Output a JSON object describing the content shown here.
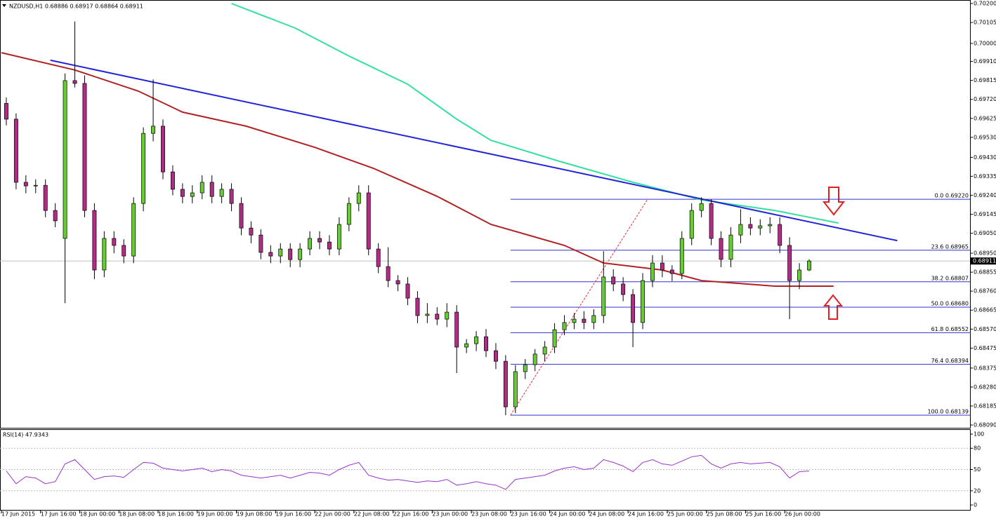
{
  "chart_data": {
    "type": "candlestick",
    "title": "NZDUSD,H1 0.68886 0.68917 0.68864 0.68911",
    "xlim": [
      0,
      198
    ],
    "ylim": [
      0.6809,
      0.702
    ],
    "xticks": [
      {
        "value": 0,
        "label": "17 Jun 2015"
      },
      {
        "value": 8,
        "label": "17 Jun 16:00"
      },
      {
        "value": 16,
        "label": "18 Jun 00:00"
      },
      {
        "value": 24,
        "label": "18 Jun 08:00"
      },
      {
        "value": 32,
        "label": "18 Jun 16:00"
      },
      {
        "value": 40,
        "label": "19 Jun 00:00"
      },
      {
        "value": 48,
        "label": "19 Jun 08:00"
      },
      {
        "value": 56,
        "label": "19 Jun 16:00"
      },
      {
        "value": 64,
        "label": "22 Jun 00:00"
      },
      {
        "value": 72,
        "label": "22 Jun 08:00"
      },
      {
        "value": 80,
        "label": "22 Jun 16:00"
      },
      {
        "value": 88,
        "label": "23 Jun 00:00"
      },
      {
        "value": 96,
        "label": "23 Jun 08:00"
      },
      {
        "value": 104,
        "label": "23 Jun 16:00"
      },
      {
        "value": 112,
        "label": "24 Jun 00:00"
      },
      {
        "value": 120,
        "label": "24 Jun 08:00"
      },
      {
        "value": 128,
        "label": "24 Jun 16:00"
      },
      {
        "value": 136,
        "label": "25 Jun 00:00"
      },
      {
        "value": 144,
        "label": "25 Jun 08:00"
      },
      {
        "value": 152,
        "label": "25 Jun 16:00"
      },
      {
        "value": 160,
        "label": "26 Jun 00:00"
      }
    ],
    "yticks": [
      {
        "value": 0.702,
        "label": "0.70200"
      },
      {
        "value": 0.70105,
        "label": "0.70105"
      },
      {
        "value": 0.7,
        "label": "0.70000"
      },
      {
        "value": 0.6991,
        "label": "0.69910"
      },
      {
        "value": 0.69815,
        "label": "0.69815"
      },
      {
        "value": 0.6972,
        "label": "0.69720"
      },
      {
        "value": 0.69625,
        "label": "0.69625"
      },
      {
        "value": 0.6953,
        "label": "0.69530"
      },
      {
        "value": 0.6943,
        "label": "0.69430"
      },
      {
        "value": 0.69335,
        "label": "0.69335"
      },
      {
        "value": 0.6924,
        "label": "0.69240"
      },
      {
        "value": 0.69145,
        "label": "0.69145"
      },
      {
        "value": 0.6905,
        "label": "0.69050"
      },
      {
        "value": 0.6895,
        "label": "0.68950"
      },
      {
        "value": 0.68855,
        "label": "0.68855"
      },
      {
        "value": 0.6876,
        "label": "0.68760"
      },
      {
        "value": 0.68665,
        "label": "0.68665"
      },
      {
        "value": 0.6857,
        "label": "0.68570"
      },
      {
        "value": 0.68475,
        "label": "0.68475"
      },
      {
        "value": 0.68375,
        "label": "0.68375"
      },
      {
        "value": 0.6828,
        "label": "0.68280"
      },
      {
        "value": 0.68185,
        "label": "0.68185"
      },
      {
        "value": 0.6809,
        "label": "0.68090"
      }
    ],
    "up_color": "#66cc33",
    "down_color": "#b02d86",
    "open": [
      0.697,
      0.69621,
      0.69305,
      0.69287,
      0.6929,
      0.69164,
      0.69024,
      0.69814,
      0.698,
      0.69164,
      0.68866,
      0.69024,
      0.68989,
      0.68936,
      0.69199,
      0.6955,
      0.69586,
      0.69357,
      0.6927,
      0.69234,
      0.69252,
      0.69305,
      0.69234,
      0.6927,
      0.69199,
      0.69076,
      0.69041,
      0.68954,
      0.68936,
      0.68971,
      0.68918,
      0.68971,
      0.69024,
      0.69006,
      0.68971,
      0.69094,
      0.69199,
      0.69252,
      0.68971,
      0.68883,
      0.68813,
      0.68796,
      0.68725,
      0.68638,
      0.68645,
      0.6862,
      0.68655,
      0.6848,
      0.68497,
      0.68532,
      0.68462,
      0.68409,
      0.68181,
      0.68357,
      0.68392,
      0.68445,
      0.6848,
      0.68567,
      0.68603,
      0.6862,
      0.68603,
      0.68638,
      0.68831,
      0.68796,
      0.68743,
      0.68603,
      0.68813,
      0.68901,
      0.68866,
      0.68848,
      0.69024,
      0.69164,
      0.69199,
      0.69024,
      0.68919,
      0.69041,
      0.69094,
      0.69076,
      0.69087,
      0.69094,
      0.68989,
      0.68813,
      0.68866
    ],
    "high": [
      0.6973,
      0.6965,
      0.6934,
      0.6932,
      0.6932,
      0.692,
      0.6985,
      0.7011,
      0.6984,
      0.692,
      0.6906,
      0.6906,
      0.6902,
      0.6923,
      0.6958,
      0.6982,
      0.6962,
      0.6939,
      0.693,
      0.6929,
      0.6934,
      0.6934,
      0.693,
      0.693,
      0.6923,
      0.6911,
      0.6907,
      0.6899,
      0.69,
      0.69,
      0.69,
      0.6906,
      0.6906,
      0.6904,
      0.6913,
      0.6923,
      0.6929,
      0.6929,
      0.69,
      0.6898,
      0.6884,
      0.6883,
      0.6876,
      0.687,
      0.6868,
      0.687,
      0.6869,
      0.6852,
      0.6856,
      0.6857,
      0.685,
      0.6844,
      0.6839,
      0.6842,
      0.6847,
      0.6851,
      0.686,
      0.6864,
      0.6865,
      0.6866,
      0.6867,
      0.6896,
      0.6887,
      0.6883,
      0.6877,
      0.6885,
      0.6894,
      0.6894,
      0.6889,
      0.6906,
      0.692,
      0.6923,
      0.6922,
      0.6906,
      0.6908,
      0.6917,
      0.6913,
      0.6912,
      0.6913,
      0.6913,
      0.6903,
      0.689,
      0.6892
    ],
    "low": [
      0.6959,
      0.6927,
      0.6925,
      0.6925,
      0.6913,
      0.6908,
      0.687,
      0.6978,
      0.6913,
      0.6882,
      0.6883,
      0.6895,
      0.689,
      0.689,
      0.6916,
      0.6951,
      0.6932,
      0.6924,
      0.692,
      0.692,
      0.6922,
      0.692,
      0.692,
      0.6916,
      0.6904,
      0.69,
      0.6892,
      0.689,
      0.689,
      0.6888,
      0.6888,
      0.6894,
      0.6897,
      0.6894,
      0.6894,
      0.6906,
      0.6916,
      0.6894,
      0.6885,
      0.6878,
      0.6876,
      0.6869,
      0.686,
      0.686,
      0.6859,
      0.6858,
      0.6835,
      0.6845,
      0.6846,
      0.6843,
      0.6837,
      0.68139,
      0.6815,
      0.6832,
      0.6836,
      0.6841,
      0.6845,
      0.6854,
      0.6857,
      0.6857,
      0.6857,
      0.686,
      0.6876,
      0.6871,
      0.6848,
      0.6857,
      0.6878,
      0.6883,
      0.6881,
      0.6882,
      0.6899,
      0.6913,
      0.6899,
      0.6888,
      0.6888,
      0.69,
      0.6904,
      0.6904,
      0.6905,
      0.6895,
      0.6862,
      0.6877,
      0.6886
    ],
    "close": [
      0.69621,
      0.69305,
      0.69287,
      0.6929,
      0.69164,
      0.69112,
      0.69814,
      0.698,
      0.69164,
      0.68866,
      0.69024,
      0.68989,
      0.68936,
      0.69199,
      0.6955,
      0.69586,
      0.69357,
      0.6927,
      0.69234,
      0.69252,
      0.69305,
      0.69234,
      0.6927,
      0.69199,
      0.69076,
      0.69041,
      0.68954,
      0.68936,
      0.68971,
      0.68918,
      0.68971,
      0.69024,
      0.69006,
      0.68971,
      0.69094,
      0.69199,
      0.69252,
      0.68971,
      0.68883,
      0.68813,
      0.68796,
      0.68725,
      0.68638,
      0.68645,
      0.6862,
      0.68655,
      0.6848,
      0.68497,
      0.68532,
      0.68462,
      0.68409,
      0.68181,
      0.68357,
      0.68392,
      0.68445,
      0.6848,
      0.68567,
      0.68603,
      0.6862,
      0.68603,
      0.68638,
      0.68831,
      0.68796,
      0.68743,
      0.68603,
      0.68813,
      0.68901,
      0.68866,
      0.68848,
      0.69024,
      0.69164,
      0.69199,
      0.69024,
      0.68919,
      0.69041,
      0.69094,
      0.69076,
      0.69087,
      0.69094,
      0.68989,
      0.68813,
      0.68866,
      0.68911
    ],
    "overlays": [
      {
        "color": "#b22222",
        "x": [
          0,
          15,
          28,
          37,
          50,
          64,
          76,
          89,
          100,
          115,
          123,
          135,
          143,
          158,
          170
        ],
        "values": [
          0.69954,
          0.69867,
          0.69761,
          0.69656,
          0.69586,
          0.6948,
          0.69375,
          0.69235,
          0.69094,
          0.68989,
          0.68901,
          0.68866,
          0.68813,
          0.68785,
          0.68785
        ]
      },
      {
        "color": "#33e0a0",
        "x": [
          47,
          60,
          71,
          83,
          93,
          100,
          114,
          129,
          143,
          158,
          171
        ],
        "values": [
          0.702,
          0.70077,
          0.69937,
          0.69796,
          0.69621,
          0.69515,
          0.6941,
          0.69305,
          0.69217,
          0.69164,
          0.69101
        ]
      },
      {
        "color": "#2323d8",
        "x": [
          10,
          183
        ],
        "values": [
          0.69916,
          0.69013
        ]
      },
      {
        "color": "#e03030",
        "dashed": true,
        "x": [
          104,
          132
        ],
        "values": [
          0.68139,
          0.6922
        ]
      }
    ],
    "fib_start": 104,
    "fib_color": "#3333cc",
    "fib_levels": [
      {
        "value": 0.6922,
        "label": "0.0 0.69220"
      },
      {
        "value": 0.68965,
        "label": "23.6 0.68965"
      },
      {
        "value": 0.68807,
        "label": "38.2 0.68807"
      },
      {
        "value": 0.6868,
        "label": "50.0 0.68680"
      },
      {
        "value": 0.68552,
        "label": "61.8 0.68552"
      },
      {
        "value": 0.68394,
        "label": "76.4 0.68394"
      },
      {
        "value": 0.68139,
        "label": "100.0 0.68139"
      }
    ],
    "last_price": {
      "value": 0.68911,
      "label": "0.68911"
    },
    "rsi": {
      "title": "RSI(14) 47.9343",
      "ylim": [
        0,
        100
      ],
      "yticks": [
        100,
        80,
        50,
        20,
        0
      ],
      "color": "#9933cc",
      "values": [
        48,
        30,
        40,
        38,
        30,
        33,
        58,
        64,
        50,
        36,
        40,
        41,
        39,
        50,
        60,
        59,
        52,
        50,
        48,
        50,
        52,
        47,
        50,
        48,
        42,
        40,
        38,
        40,
        42,
        38,
        42,
        46,
        45,
        42,
        50,
        56,
        60,
        42,
        38,
        35,
        36,
        34,
        32,
        34,
        33,
        36,
        28,
        30,
        33,
        30,
        28,
        22,
        36,
        38,
        40,
        42,
        48,
        52,
        54,
        50,
        52,
        64,
        60,
        55,
        47,
        60,
        64,
        58,
        56,
        62,
        68,
        70,
        58,
        52,
        58,
        60,
        58,
        59,
        60,
        54,
        38,
        47,
        47.9343
      ]
    }
  }
}
